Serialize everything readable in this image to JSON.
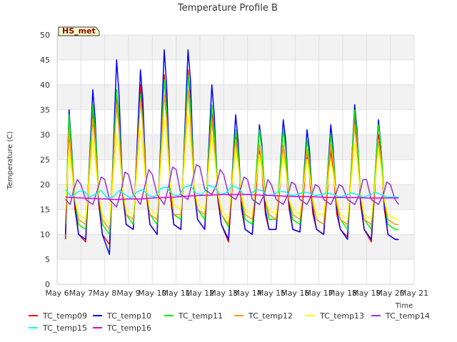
{
  "chart_data": {
    "type": "line",
    "title": "Temperature Profile B",
    "xlabel": "Time",
    "ylabel": "Temperature (C)",
    "badge": "HS_met",
    "xlim": [
      6,
      21
    ],
    "ylim": [
      0,
      50
    ],
    "x_ticks": [
      {
        "value": 6,
        "label": "May 6"
      },
      {
        "value": 7,
        "label": "May 7"
      },
      {
        "value": 8,
        "label": "May 8"
      },
      {
        "value": 9,
        "label": "May 9"
      },
      {
        "value": 10,
        "label": "May 10"
      },
      {
        "value": 11,
        "label": "May 11"
      },
      {
        "value": 12,
        "label": "May 12"
      },
      {
        "value": 13,
        "label": "May 13"
      },
      {
        "value": 14,
        "label": "May 14"
      },
      {
        "value": 15,
        "label": "May 15"
      },
      {
        "value": 16,
        "label": "May 16"
      },
      {
        "value": 17,
        "label": "May 17"
      },
      {
        "value": 18,
        "label": "May 18"
      },
      {
        "value": 19,
        "label": "May 19"
      },
      {
        "value": 20,
        "label": "May 20"
      },
      {
        "value": 21,
        "label": "May 21"
      }
    ],
    "y_ticks": [
      0,
      5,
      10,
      15,
      20,
      25,
      30,
      35,
      40,
      45,
      50
    ],
    "grid": true,
    "legend_position": "bottom",
    "background_bands": true,
    "series": [
      {
        "name": "TC_temp09",
        "color": "#ff0000",
        "x": [
          6.35,
          6.5,
          6.6,
          6.75,
          6.9,
          7.2,
          7.5,
          7.6,
          7.75,
          7.9,
          8.2,
          8.5,
          8.6,
          8.75,
          8.9,
          9.2,
          9.5,
          9.6,
          9.75,
          9.9,
          10.2,
          10.5,
          10.6,
          10.75,
          10.9,
          11.2,
          11.5,
          11.6,
          11.75,
          11.9,
          12.2,
          12.5,
          12.6,
          12.75,
          12.9,
          13.2,
          13.5,
          13.6,
          13.75,
          13.9,
          14.2,
          14.5,
          14.6,
          14.75,
          14.9,
          15.2,
          15.5,
          15.6,
          15.75,
          15.9,
          16.2,
          16.5,
          16.6,
          16.75,
          16.9,
          17.2,
          17.5,
          17.6,
          17.75,
          17.9,
          18.2,
          18.5,
          18.6,
          18.75,
          18.9,
          19.2,
          19.5,
          19.6,
          19.75,
          19.9,
          20.2,
          20.35
        ],
        "y": [
          9,
          31,
          25,
          15,
          10,
          8.5,
          35,
          30,
          16,
          10,
          8,
          38,
          33,
          18,
          12,
          11,
          40,
          35,
          18,
          12,
          10,
          42,
          36,
          18,
          12,
          11,
          43,
          37,
          19,
          13,
          11,
          35,
          30,
          17,
          12,
          8.5,
          30,
          26,
          15,
          11,
          10,
          27,
          23,
          14,
          11,
          11,
          28,
          24,
          15,
          11,
          10.5,
          26,
          22,
          14,
          11,
          10,
          27,
          23,
          14,
          11,
          9.5,
          34,
          29,
          16,
          11,
          8.5,
          30,
          26,
          15,
          10,
          9,
          9
        ]
      },
      {
        "name": "TC_temp10",
        "color": "#0000ff",
        "x": [
          6.35,
          6.5,
          6.6,
          6.75,
          6.9,
          7.2,
          7.5,
          7.6,
          7.75,
          7.9,
          8.2,
          8.5,
          8.6,
          8.75,
          8.9,
          9.2,
          9.5,
          9.6,
          9.75,
          9.9,
          10.2,
          10.5,
          10.6,
          10.75,
          10.9,
          11.2,
          11.5,
          11.6,
          11.75,
          11.9,
          12.2,
          12.5,
          12.6,
          12.75,
          12.9,
          13.2,
          13.5,
          13.6,
          13.75,
          13.9,
          14.2,
          14.5,
          14.6,
          14.75,
          14.9,
          15.2,
          15.5,
          15.6,
          15.75,
          15.9,
          16.2,
          16.5,
          16.6,
          16.75,
          16.9,
          17.2,
          17.5,
          17.6,
          17.75,
          17.9,
          18.2,
          18.5,
          18.6,
          18.75,
          18.9,
          19.2,
          19.5,
          19.6,
          19.75,
          19.9,
          20.2,
          20.35
        ],
        "y": [
          10,
          35,
          28,
          16,
          10,
          9,
          39,
          33,
          17,
          10,
          6,
          45,
          38,
          19,
          12,
          11,
          43,
          37,
          19,
          12,
          10,
          47,
          40,
          20,
          12,
          11,
          47,
          41,
          20,
          13,
          11,
          40,
          34,
          18,
          12,
          9,
          34,
          29,
          16,
          11,
          10,
          32,
          28,
          15,
          11,
          11,
          33,
          29,
          16,
          11,
          10.5,
          31,
          27,
          15,
          11,
          10,
          32,
          27,
          15,
          11,
          9,
          36,
          31,
          17,
          11,
          9,
          33,
          28,
          16,
          10,
          9,
          9
        ]
      },
      {
        "name": "TC_temp11",
        "color": "#00ee00",
        "x": [
          6.35,
          6.5,
          6.6,
          6.75,
          6.9,
          7.2,
          7.5,
          7.6,
          7.75,
          7.9,
          8.2,
          8.5,
          8.6,
          8.75,
          8.9,
          9.2,
          9.5,
          9.6,
          9.75,
          9.9,
          10.2,
          10.5,
          10.6,
          10.75,
          10.9,
          11.2,
          11.5,
          11.6,
          11.75,
          11.9,
          12.2,
          12.5,
          12.6,
          12.75,
          12.9,
          13.2,
          13.5,
          13.6,
          13.75,
          13.9,
          14.2,
          14.5,
          14.6,
          14.75,
          14.9,
          15.2,
          15.5,
          15.6,
          15.75,
          15.9,
          16.2,
          16.5,
          16.6,
          16.75,
          16.9,
          17.2,
          17.5,
          17.6,
          17.75,
          17.9,
          18.2,
          18.5,
          18.6,
          18.75,
          18.9,
          19.2,
          19.5,
          19.6,
          19.75,
          19.9,
          20.2,
          20.35
        ],
        "y": [
          12,
          34,
          27,
          17,
          12,
          11,
          36,
          31,
          18,
          12,
          10,
          39,
          33,
          19,
          14,
          12,
          38,
          33,
          19,
          14,
          12,
          41,
          35,
          20,
          14,
          13,
          42,
          36,
          20,
          15,
          13,
          36,
          31,
          19,
          14,
          11.5,
          31,
          27,
          17,
          13,
          12,
          31,
          27,
          17,
          13,
          13,
          31,
          27,
          17,
          13,
          12,
          29,
          25,
          16,
          13,
          12,
          30,
          26,
          16,
          13,
          11,
          35,
          30,
          18,
          13,
          11,
          32,
          28,
          17,
          12,
          11,
          11
        ]
      },
      {
        "name": "TC_temp12",
        "color": "#ff9900",
        "x": [
          6.35,
          6.5,
          6.6,
          6.75,
          6.9,
          7.2,
          7.5,
          7.6,
          7.75,
          7.9,
          8.2,
          8.5,
          8.6,
          8.75,
          8.9,
          9.2,
          9.5,
          9.6,
          9.75,
          9.9,
          10.2,
          10.5,
          10.6,
          10.75,
          10.9,
          11.2,
          11.5,
          11.6,
          11.75,
          11.9,
          12.2,
          12.5,
          12.6,
          12.75,
          12.9,
          13.2,
          13.5,
          13.6,
          13.75,
          13.9,
          14.2,
          14.5,
          14.6,
          14.75,
          14.9,
          15.2,
          15.5,
          15.6,
          15.75,
          15.9,
          16.2,
          16.5,
          16.6,
          16.75,
          16.9,
          17.2,
          17.5,
          17.6,
          17.75,
          17.9,
          18.2,
          18.5,
          18.6,
          18.75,
          18.9,
          19.2,
          19.5,
          19.6,
          19.75,
          19.9,
          20.2,
          20.35
        ],
        "y": [
          13,
          31,
          25,
          17,
          13,
          12,
          33,
          28,
          18,
          13,
          11,
          36,
          31,
          19,
          14,
          13,
          37,
          32,
          19,
          14,
          13,
          38,
          33,
          20,
          14,
          14,
          39,
          33,
          20,
          15,
          14,
          33,
          28,
          18,
          14,
          12,
          29,
          25,
          17,
          14,
          13,
          28,
          24,
          17,
          14,
          13,
          28,
          24,
          17,
          14,
          13,
          27,
          23,
          16,
          13,
          12,
          28,
          24,
          16,
          13,
          12,
          32,
          27,
          18,
          13,
          12,
          29,
          25,
          17,
          13,
          12,
          12
        ]
      },
      {
        "name": "TC_temp13",
        "color": "#ffff00",
        "x": [
          6.35,
          6.5,
          6.6,
          6.75,
          6.9,
          7.2,
          7.5,
          7.6,
          7.75,
          7.9,
          8.2,
          8.5,
          8.6,
          8.75,
          8.9,
          9.2,
          9.5,
          9.6,
          9.75,
          9.9,
          10.2,
          10.5,
          10.6,
          10.75,
          10.9,
          11.2,
          11.5,
          11.6,
          11.75,
          11.9,
          12.2,
          12.5,
          12.6,
          12.75,
          12.9,
          13.2,
          13.5,
          13.6,
          13.75,
          13.9,
          14.2,
          14.5,
          14.6,
          14.75,
          14.9,
          15.2,
          15.5,
          15.6,
          15.75,
          15.9,
          16.2,
          16.5,
          16.6,
          16.75,
          16.9,
          17.2,
          17.5,
          17.6,
          17.75,
          17.9,
          18.2,
          18.5,
          18.6,
          18.75,
          18.9,
          19.2,
          19.5,
          19.6,
          19.75,
          19.9,
          20.2,
          20.35
        ],
        "y": [
          15,
          27,
          23,
          17,
          14,
          13,
          29,
          25,
          18,
          14,
          12,
          30,
          27,
          19,
          15,
          14,
          31,
          27,
          19,
          15,
          14,
          33,
          29,
          20,
          16,
          15,
          34,
          29,
          20,
          16,
          15,
          30,
          26,
          19,
          15,
          13,
          27,
          24,
          18,
          15,
          14,
          26,
          23,
          17,
          15,
          14,
          26,
          23,
          17,
          15,
          14,
          25,
          22,
          17,
          14,
          14,
          25,
          22,
          17,
          14,
          13,
          28,
          25,
          18,
          14,
          13,
          27,
          24,
          17,
          14,
          13,
          13
        ]
      },
      {
        "name": "TC_temp14",
        "color": "#9932cc",
        "x": [
          6.35,
          6.55,
          6.7,
          6.85,
          7.0,
          7.2,
          7.5,
          7.7,
          7.85,
          8.0,
          8.2,
          8.5,
          8.7,
          8.85,
          9.0,
          9.2,
          9.5,
          9.7,
          9.85,
          10.0,
          10.2,
          10.5,
          10.7,
          10.85,
          11.0,
          11.2,
          11.5,
          11.7,
          11.85,
          12.0,
          12.2,
          12.5,
          12.7,
          12.85,
          13.0,
          13.2,
          13.5,
          13.7,
          13.85,
          14.0,
          14.2,
          14.5,
          14.7,
          14.85,
          15.0,
          15.2,
          15.5,
          15.7,
          15.85,
          16.0,
          16.2,
          16.5,
          16.7,
          16.85,
          17.0,
          17.2,
          17.5,
          17.7,
          17.85,
          18.0,
          18.2,
          18.5,
          18.7,
          18.85,
          19.0,
          19.2,
          19.5,
          19.7,
          19.85,
          20.0,
          20.2,
          20.35
        ],
        "y": [
          17,
          16,
          19,
          21,
          20,
          17,
          16,
          19,
          21.5,
          21,
          17,
          15.5,
          19,
          22.5,
          22,
          18,
          16,
          20,
          23,
          22,
          18,
          16,
          20,
          23.5,
          23,
          18,
          17,
          21,
          24,
          23.5,
          19,
          18,
          20,
          23,
          22,
          18,
          17,
          19,
          21.5,
          21,
          17,
          16,
          18,
          21,
          20,
          17,
          16,
          18,
          20.5,
          20,
          17,
          16,
          18,
          20,
          19.5,
          17,
          16,
          18,
          20,
          19.5,
          17,
          16,
          18,
          21,
          21,
          17,
          16,
          18,
          20.5,
          20,
          17,
          16
        ]
      },
      {
        "name": "TC_temp15",
        "color": "#00ffff",
        "x": [
          6.35,
          6.6,
          6.85,
          7.1,
          7.35,
          7.6,
          7.85,
          8.1,
          8.35,
          8.6,
          8.85,
          9.1,
          9.35,
          9.6,
          9.85,
          10.1,
          10.35,
          10.6,
          10.85,
          11.1,
          11.35,
          11.6,
          11.85,
          12.1,
          12.35,
          12.6,
          12.85,
          13.1,
          13.35,
          13.6,
          13.85,
          14.1,
          14.35,
          14.6,
          14.85,
          15.1,
          15.35,
          15.6,
          15.85,
          16.1,
          16.35,
          16.6,
          16.85,
          17.1,
          17.35,
          17.6,
          17.85,
          18.1,
          18.35,
          18.6,
          18.85,
          19.1,
          19.35,
          19.6,
          19.85,
          20.1,
          20.35
        ],
        "y": [
          19,
          17.5,
          18.5,
          18.8,
          17.5,
          18,
          18.8,
          17.3,
          17.5,
          18.8,
          18,
          17.3,
          18.5,
          19,
          17.8,
          17.5,
          19.2,
          19.5,
          18,
          17.7,
          19.5,
          19.8,
          18.2,
          18,
          19.8,
          19.5,
          18,
          18.3,
          19.8,
          19.3,
          18,
          18,
          19,
          18.8,
          17.8,
          18,
          18.7,
          18.5,
          17.8,
          18,
          18.5,
          18.3,
          17.8,
          18,
          18.3,
          18,
          17.5,
          17.8,
          18.3,
          18,
          17.5,
          17.8,
          18.5,
          18,
          17.5,
          17.5,
          17.5
        ]
      },
      {
        "name": "TC_temp16",
        "color": "#dd00dd",
        "x": [
          6.35,
          7.0,
          7.5,
          8.0,
          8.5,
          9.0,
          9.5,
          10.0,
          10.5,
          11.0,
          11.5,
          12.0,
          12.5,
          13.0,
          13.5,
          14.0,
          14.5,
          15.0,
          15.5,
          16.0,
          16.5,
          17.0,
          17.5,
          18.0,
          18.5,
          19.0,
          19.5,
          20.0,
          20.35
        ],
        "y": [
          17.5,
          17.3,
          17.2,
          17.1,
          17.0,
          17.1,
          17.1,
          17.3,
          17.4,
          17.5,
          17.7,
          17.8,
          17.9,
          18.0,
          18.0,
          18.0,
          17.9,
          17.8,
          17.7,
          17.6,
          17.6,
          17.5,
          17.4,
          17.4,
          17.4,
          17.3,
          17.3,
          17.3,
          17.3
        ]
      }
    ]
  }
}
